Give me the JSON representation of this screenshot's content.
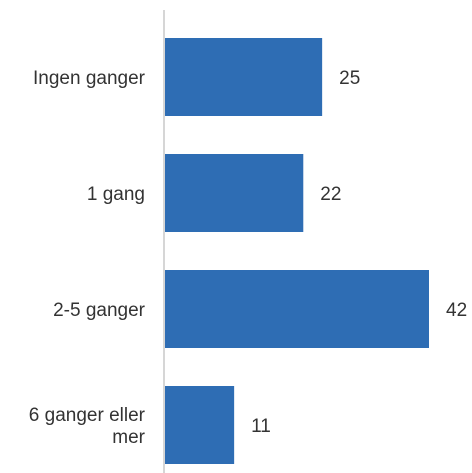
{
  "chart_data": {
    "type": "bar",
    "orientation": "horizontal",
    "title": "",
    "xlabel": "",
    "ylabel": "",
    "categories": [
      "Ingen ganger",
      "1 gang",
      "2-5 ganger",
      "6 ganger eller mer"
    ],
    "values": [
      25,
      22,
      42,
      11
    ],
    "xlim": [
      0,
      42
    ],
    "grid": false,
    "legend": "none",
    "bar_color": "#2e6db4",
    "axis_color": "#c8c8c8",
    "text_color": "#333333"
  }
}
